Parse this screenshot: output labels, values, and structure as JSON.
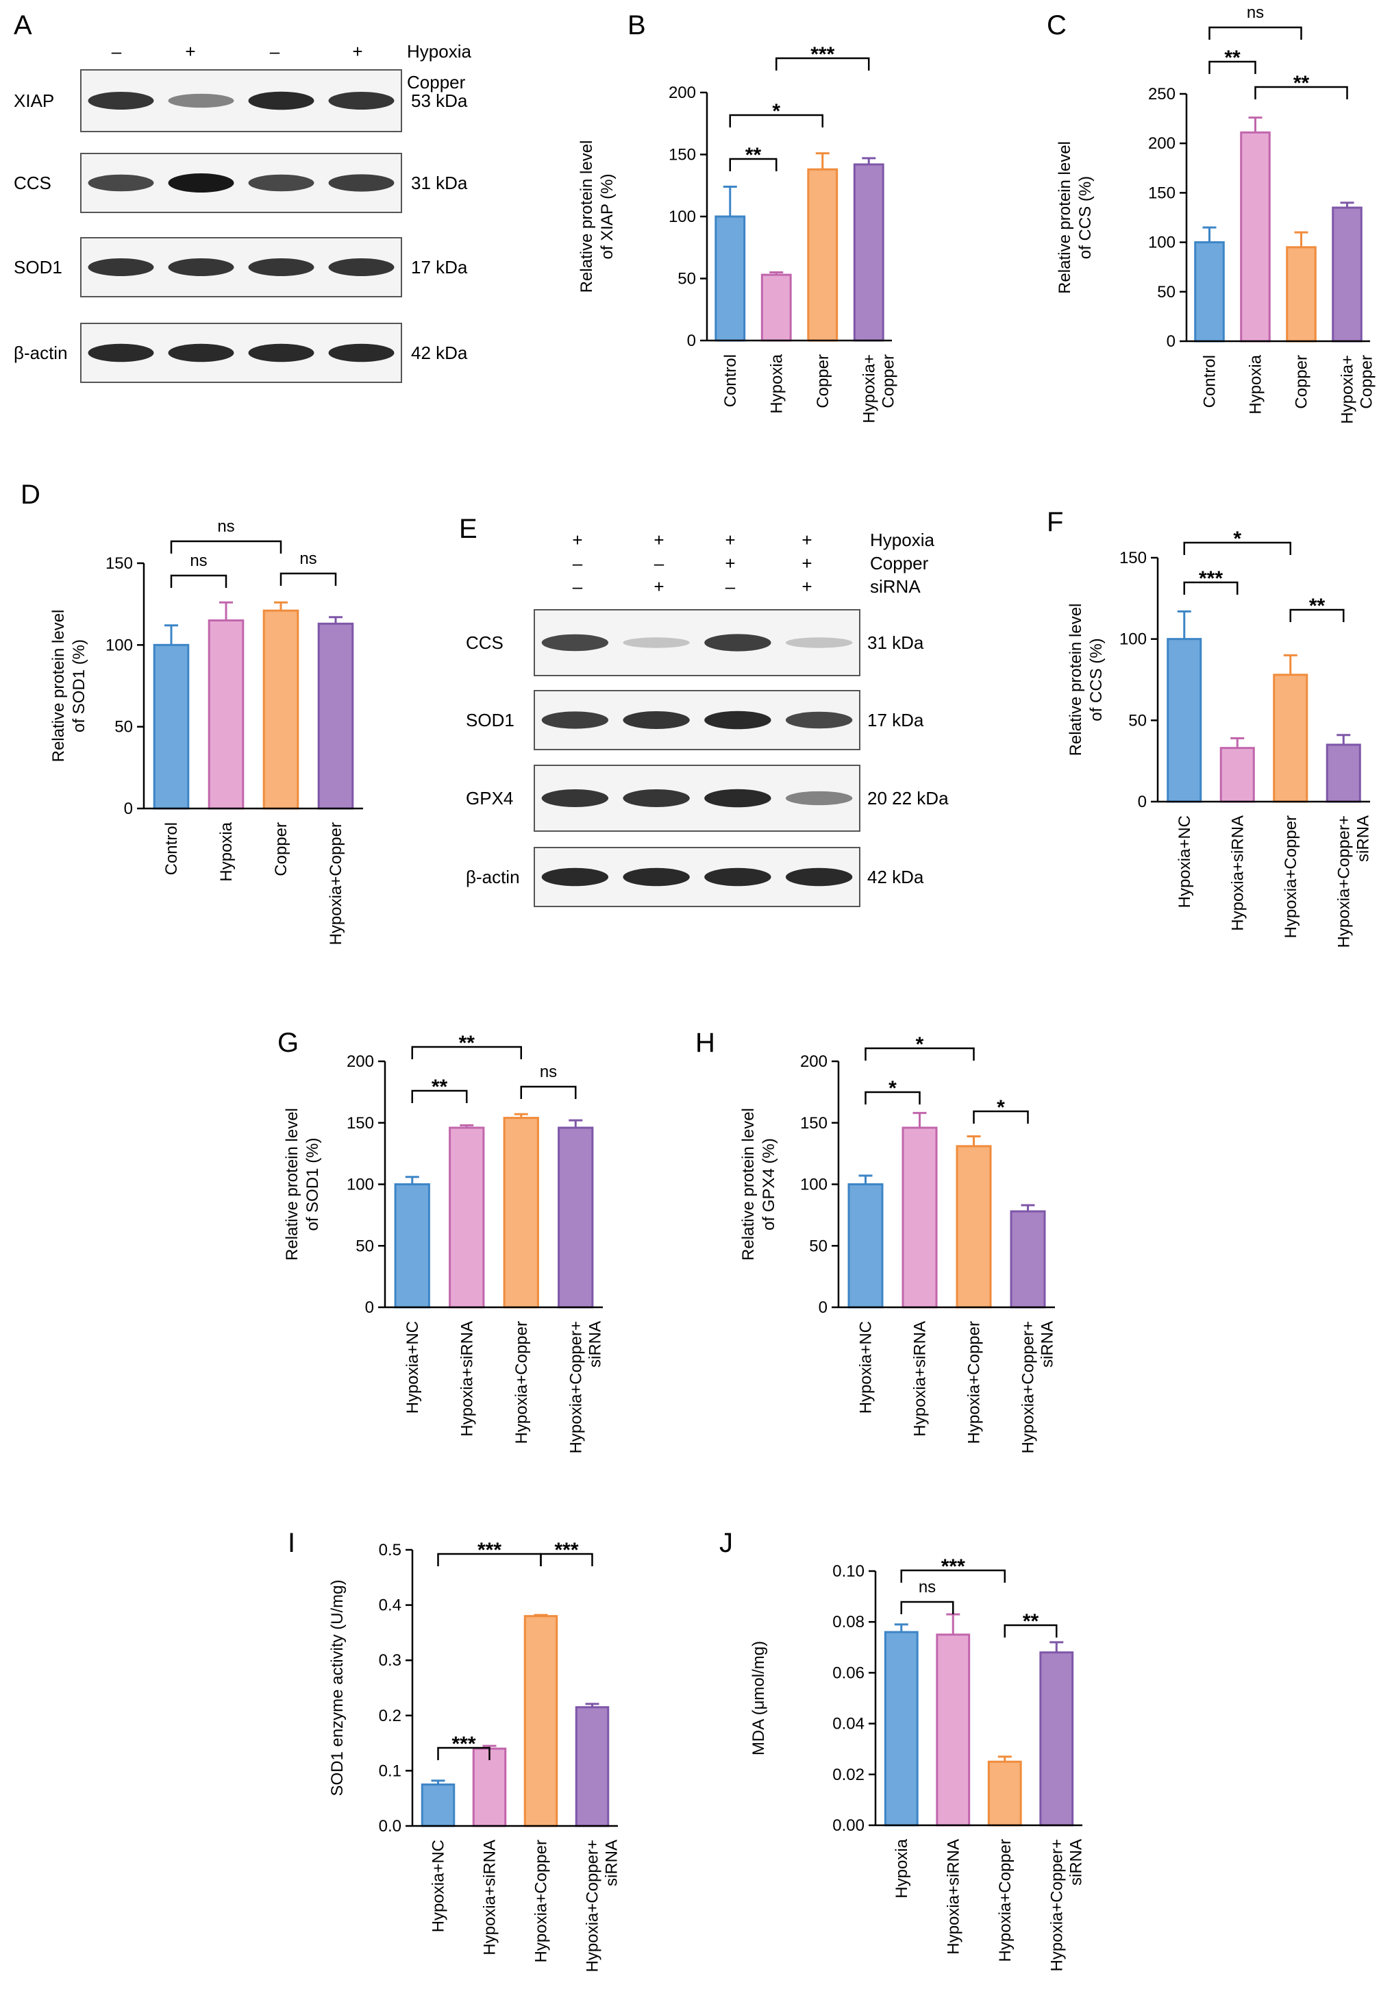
{
  "colors": {
    "blue": {
      "fill": "#6fa8dc",
      "edge": "#3d85c6"
    },
    "pink": {
      "fill": "#e6a8d3",
      "edge": "#c166ac"
    },
    "orange": {
      "fill": "#f8b27a",
      "edge": "#f08c3c"
    },
    "purple": {
      "fill": "#a884c4",
      "edge": "#7e57a8"
    }
  },
  "blots": [
    {
      "panel": "A",
      "conditions": [
        {
          "label": "Hypoxia",
          "marks": [
            "–",
            "+",
            "–",
            "+"
          ]
        },
        {
          "label": "Copper",
          "marks": [
            "–",
            "–",
            "+",
            "+"
          ]
        }
      ],
      "rows": [
        {
          "protein": "XIAP",
          "size": "53 kDa",
          "intensity": [
            0.85,
            0.45,
            0.9,
            0.85
          ]
        },
        {
          "protein": "CCS",
          "size": "31 kDa",
          "intensity": [
            0.75,
            1.0,
            0.75,
            0.8
          ]
        },
        {
          "protein": "SOD1",
          "size": "17 kDa",
          "intensity": [
            0.85,
            0.85,
            0.85,
            0.85
          ]
        },
        {
          "protein": "β-actin",
          "size": "42 kDa",
          "intensity": [
            0.9,
            0.9,
            0.9,
            0.9
          ]
        }
      ]
    },
    {
      "panel": "E",
      "conditions": [
        {
          "label": "Hypoxia",
          "marks": [
            "+",
            "+",
            "+",
            "+"
          ]
        },
        {
          "label": "Copper",
          "marks": [
            "–",
            "–",
            "+",
            "+"
          ]
        },
        {
          "label": "siRNA",
          "marks": [
            "–",
            "+",
            "–",
            "+"
          ]
        }
      ],
      "rows": [
        {
          "protein": "CCS",
          "size": "31 kDa",
          "intensity": [
            0.75,
            0.1,
            0.8,
            0.1
          ]
        },
        {
          "protein": "SOD1",
          "size": "17 kDa",
          "intensity": [
            0.8,
            0.85,
            0.9,
            0.75
          ]
        },
        {
          "protein": "GPX4",
          "size": "20 22 kDa",
          "intensity": [
            0.85,
            0.85,
            0.9,
            0.45
          ]
        },
        {
          "protein": "β-actin",
          "size": "42 kDa",
          "intensity": [
            0.9,
            0.9,
            0.9,
            0.9
          ]
        }
      ]
    }
  ],
  "chart_data": [
    {
      "panel": "B",
      "type": "bar",
      "categories": [
        "Control",
        "Hypoxia",
        "Copper",
        "Hypoxia+\nCopper"
      ],
      "values": [
        100,
        53,
        138,
        142
      ],
      "errors": [
        24,
        2,
        13,
        5
      ],
      "ylabel": "Relative protein level\nof XIAP (%)",
      "ylim": [
        0,
        200
      ],
      "yticks": [
        0,
        50,
        100,
        150,
        200
      ],
      "significance": [
        {
          "from": 0,
          "to": 1,
          "label": "**"
        },
        {
          "from": 0,
          "to": 2,
          "label": "*"
        },
        {
          "from": 1,
          "to": 3,
          "label": "***"
        }
      ]
    },
    {
      "panel": "C",
      "type": "bar",
      "categories": [
        "Control",
        "Hypoxia",
        "Copper",
        "Hypoxia+\nCopper"
      ],
      "values": [
        100,
        211,
        95,
        135
      ],
      "errors": [
        15,
        15,
        15,
        5
      ],
      "ylabel": "Relative protein level\nof CCS (%)",
      "ylim": [
        0,
        250
      ],
      "yticks": [
        0,
        50,
        100,
        150,
        200,
        250
      ],
      "significance": [
        {
          "from": 0,
          "to": 2,
          "label": "ns"
        },
        {
          "from": 0,
          "to": 1,
          "label": "**"
        },
        {
          "from": 1,
          "to": 3,
          "label": "**"
        }
      ]
    },
    {
      "panel": "D",
      "type": "bar",
      "categories": [
        "Control",
        "Hypoxia",
        "Copper",
        "Hypoxia+Copper"
      ],
      "values": [
        100,
        115,
        121,
        113
      ],
      "errors": [
        12,
        11,
        5,
        4
      ],
      "ylabel": "Relative protein level\nof SOD1 (%)",
      "ylim": [
        0,
        150
      ],
      "yticks": [
        0,
        50,
        100,
        150
      ],
      "significance": [
        {
          "from": 0,
          "to": 2,
          "label": "ns"
        },
        {
          "from": 0,
          "to": 1,
          "label": "ns"
        },
        {
          "from": 2,
          "to": 3,
          "label": "ns"
        }
      ]
    },
    {
      "panel": "F",
      "type": "bar",
      "categories": [
        "Hypoxia+NC",
        "Hypoxia+siRNA",
        "Hypoxia+Copper",
        "Hypoxia+Copper+\nsiRNA"
      ],
      "values": [
        100,
        33,
        78,
        35
      ],
      "errors": [
        17,
        6,
        12,
        6
      ],
      "ylabel": "Relative protein level\nof CCS (%)",
      "ylim": [
        0,
        150
      ],
      "yticks": [
        0,
        50,
        100,
        150
      ],
      "significance": [
        {
          "from": 0,
          "to": 2,
          "label": "*"
        },
        {
          "from": 0,
          "to": 1,
          "label": "***"
        },
        {
          "from": 2,
          "to": 3,
          "label": "**"
        }
      ]
    },
    {
      "panel": "G",
      "type": "bar",
      "categories": [
        "Hypoxia+NC",
        "Hypoxia+siRNA",
        "Hypoxia+Copper",
        "Hypoxia+Copper+\nsiRNA"
      ],
      "values": [
        100,
        146,
        154,
        146
      ],
      "errors": [
        6,
        2,
        3,
        6
      ],
      "ylabel": "Relative protein level\nof SOD1 (%)",
      "ylim": [
        0,
        200
      ],
      "yticks": [
        0,
        50,
        100,
        150,
        200
      ],
      "significance": [
        {
          "from": 0,
          "to": 2,
          "label": "**"
        },
        {
          "from": 0,
          "to": 1,
          "label": "**"
        },
        {
          "from": 2,
          "to": 3,
          "label": "ns"
        }
      ]
    },
    {
      "panel": "H",
      "type": "bar",
      "categories": [
        "Hypoxia+NC",
        "Hypoxia+siRNA",
        "Hypoxia+Copper",
        "Hypoxia+Copper+\nsiRNA"
      ],
      "values": [
        100,
        146,
        131,
        78
      ],
      "errors": [
        7,
        12,
        8,
        5
      ],
      "ylabel": "Relative protein level\nof GPX4 (%)",
      "ylim": [
        0,
        200
      ],
      "yticks": [
        0,
        50,
        100,
        150,
        200
      ],
      "significance": [
        {
          "from": 0,
          "to": 2,
          "label": "*"
        },
        {
          "from": 0,
          "to": 1,
          "label": "*"
        },
        {
          "from": 2,
          "to": 3,
          "label": "*"
        }
      ]
    },
    {
      "panel": "I",
      "type": "bar",
      "categories": [
        "Hypoxia+NC",
        "Hypoxia+siRNA",
        "Hypoxia+Copper",
        "Hypoxia+Copper+\nsiRNA"
      ],
      "values": [
        0.075,
        0.14,
        0.38,
        0.215
      ],
      "errors": [
        0.007,
        0.005,
        0.002,
        0.006
      ],
      "ylabel": "SOD1 enzyme activity (U/mg)",
      "ylim": [
        0,
        0.5
      ],
      "yticks": [
        "0.0",
        "0.1",
        "0.2",
        "0.3",
        "0.4",
        "0.5"
      ],
      "significance": [
        {
          "from": 0,
          "to": 2,
          "label": "***"
        },
        {
          "from": 2,
          "to": 3,
          "label": "***"
        },
        {
          "from": 0,
          "to": 1,
          "label": "***"
        }
      ]
    },
    {
      "panel": "J",
      "type": "bar",
      "categories": [
        "Hypoxia",
        "Hypoxia+siRNA",
        "Hypoxia+Copper",
        "Hypoxia+Copper+\nsiRNA"
      ],
      "values": [
        0.076,
        0.075,
        0.025,
        0.068
      ],
      "errors": [
        0.003,
        0.008,
        0.002,
        0.004
      ],
      "ylabel": "MDA (μmol/mg)",
      "ylim": [
        0,
        0.1
      ],
      "yticks": [
        "0.00",
        "0.02",
        "0.04",
        "0.06",
        "0.08",
        "0.10"
      ],
      "significance": [
        {
          "from": 0,
          "to": 2,
          "label": "***"
        },
        {
          "from": 0,
          "to": 1,
          "label": "ns"
        },
        {
          "from": 2,
          "to": 3,
          "label": "**"
        }
      ]
    }
  ]
}
